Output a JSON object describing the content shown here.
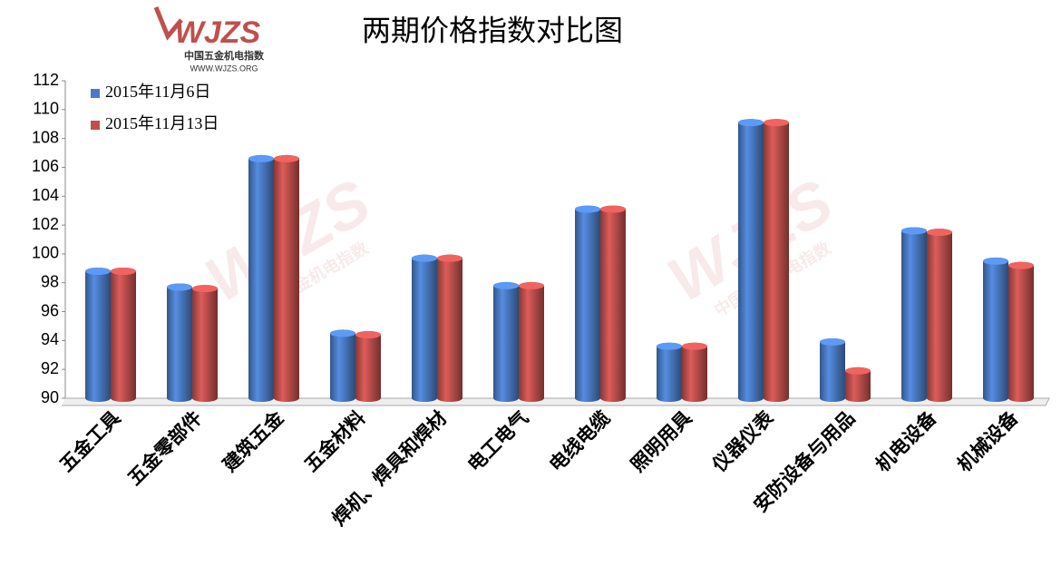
{
  "chart_data": {
    "type": "bar",
    "title": "两期价格指数对比图",
    "logo": {
      "mark": "WJZS",
      "name": "中国五金机电指数",
      "url": "WWW.WJZS.ORG"
    },
    "categories": [
      "五金工具",
      "五金零部件",
      "建筑五金",
      "五金材料",
      "焊机、焊具和焊材",
      "电工电气",
      "电线电缆",
      "照明用具",
      "仪器仪表",
      "安防设备与用品",
      "机电设备",
      "机械设备"
    ],
    "series": [
      {
        "name": "2015年11月6日",
        "color": "#4a7bc4",
        "values": [
          98.8,
          97.7,
          106.6,
          94.5,
          99.7,
          97.8,
          103.1,
          93.6,
          109.1,
          93.9,
          101.6,
          99.5
        ]
      },
      {
        "name": "2015年11月13日",
        "color": "#c0504d",
        "values": [
          98.8,
          97.6,
          106.6,
          94.4,
          99.7,
          97.8,
          103.1,
          93.6,
          109.1,
          91.9,
          101.5,
          99.2
        ]
      }
    ],
    "ylim": [
      90,
      112
    ],
    "yticks": [
      90,
      92,
      94,
      96,
      98,
      100,
      102,
      104,
      106,
      108,
      110,
      112
    ],
    "legend": "top-left"
  }
}
